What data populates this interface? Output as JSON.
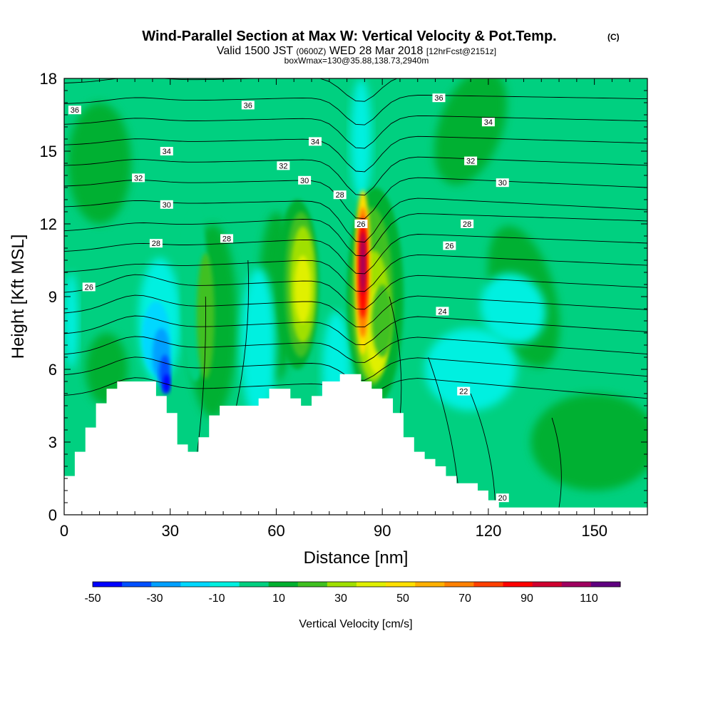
{
  "chart_data": {
    "type": "heatmap",
    "title": {
      "main": "Wind-Parallel Section at Max W: Vertical Velocity & Pot.Temp.",
      "copyright": "(C)",
      "valid_a": "Valid 1500 JST",
      "valid_b": "(0600Z)",
      "valid_c": "WED 28 Mar 2018",
      "fcst": "[12hrFcst@2151z]",
      "box": "boxWmax=130@35.88,138.73,2940m"
    },
    "xlabel": "Distance [nm]",
    "ylabel": "Height [Kft MSL]",
    "xlim": [
      0,
      165
    ],
    "ylim": [
      0,
      18
    ],
    "x_ticks": [
      "0",
      "30",
      "60",
      "90",
      "120",
      "150"
    ],
    "y_ticks": [
      "0",
      "3",
      "6",
      "9",
      "12",
      "15",
      "18"
    ],
    "colorbar": {
      "label": "Vertical Velocity [cm/s]",
      "tick_labels": [
        "-50",
        "-30",
        "-10",
        "10",
        "30",
        "50",
        "70",
        "90",
        "110"
      ],
      "levels": [
        -50,
        -40,
        -30,
        -20,
        -10,
        0,
        10,
        20,
        30,
        40,
        50,
        60,
        70,
        80,
        90,
        100,
        110,
        120
      ],
      "colors": [
        "#0000ff",
        "#0050ff",
        "#00a0ff",
        "#00d8ff",
        "#00f0e0",
        "#00d080",
        "#00b030",
        "#40c020",
        "#a0e000",
        "#e0f000",
        "#ffe000",
        "#ffb000",
        "#ff8000",
        "#ff4000",
        "#ff0000",
        "#d00030",
        "#a00060",
        "#600080"
      ]
    },
    "background_color": "#00d080",
    "terrain": [
      [
        0,
        1.6
      ],
      [
        3,
        1.6
      ],
      [
        3,
        2.6
      ],
      [
        6,
        2.6
      ],
      [
        6,
        3.6
      ],
      [
        9,
        3.6
      ],
      [
        9,
        4.6
      ],
      [
        12,
        4.6
      ],
      [
        12,
        5.2
      ],
      [
        15,
        5.2
      ],
      [
        15,
        5.5
      ],
      [
        26,
        5.5
      ],
      [
        26,
        4.9
      ],
      [
        29,
        4.9
      ],
      [
        29,
        4.2
      ],
      [
        32,
        4.2
      ],
      [
        32,
        2.9
      ],
      [
        35,
        2.9
      ],
      [
        35,
        2.6
      ],
      [
        38,
        2.6
      ],
      [
        38,
        3.2
      ],
      [
        41,
        3.2
      ],
      [
        41,
        4.1
      ],
      [
        44,
        4.1
      ],
      [
        44,
        4.5
      ],
      [
        55,
        4.5
      ],
      [
        55,
        4.8
      ],
      [
        58,
        4.8
      ],
      [
        58,
        5.2
      ],
      [
        64,
        5.2
      ],
      [
        64,
        4.8
      ],
      [
        67,
        4.8
      ],
      [
        67,
        4.5
      ],
      [
        70,
        4.5
      ],
      [
        70,
        4.9
      ],
      [
        73,
        4.9
      ],
      [
        73,
        5.5
      ],
      [
        78,
        5.5
      ],
      [
        78,
        5.8
      ],
      [
        84,
        5.8
      ],
      [
        84,
        5.5
      ],
      [
        87,
        5.5
      ],
      [
        87,
        5.2
      ],
      [
        90,
        5.2
      ],
      [
        90,
        4.8
      ],
      [
        93,
        4.8
      ],
      [
        93,
        4.2
      ],
      [
        96,
        4.2
      ],
      [
        96,
        3.2
      ],
      [
        99,
        3.2
      ],
      [
        99,
        2.6
      ],
      [
        102,
        2.6
      ],
      [
        102,
        2.3
      ],
      [
        105,
        2.3
      ],
      [
        105,
        2.0
      ],
      [
        108,
        2.0
      ],
      [
        108,
        1.6
      ],
      [
        111,
        1.6
      ],
      [
        111,
        1.3
      ],
      [
        114,
        1.3
      ],
      [
        114,
        1.3
      ],
      [
        117,
        1.3
      ],
      [
        117,
        1.0
      ],
      [
        120,
        1.0
      ],
      [
        120,
        0.6
      ],
      [
        123,
        0.6
      ],
      [
        123,
        0.3
      ],
      [
        165,
        0.3
      ]
    ],
    "contour_labels": [
      {
        "text": "36",
        "x": 3,
        "y": 16.7
      },
      {
        "text": "36",
        "x": 52,
        "y": 16.9
      },
      {
        "text": "36",
        "x": 106,
        "y": 17.2
      },
      {
        "text": "34",
        "x": 29,
        "y": 15.0
      },
      {
        "text": "34",
        "x": 71,
        "y": 15.4
      },
      {
        "text": "34",
        "x": 120,
        "y": 16.2
      },
      {
        "text": "32",
        "x": 21,
        "y": 13.9
      },
      {
        "text": "32",
        "x": 62,
        "y": 14.4
      },
      {
        "text": "32",
        "x": 115,
        "y": 14.6
      },
      {
        "text": "30",
        "x": 29,
        "y": 12.8
      },
      {
        "text": "30",
        "x": 68,
        "y": 13.8
      },
      {
        "text": "30",
        "x": 124,
        "y": 13.7
      },
      {
        "text": "28",
        "x": 26,
        "y": 11.2
      },
      {
        "text": "28",
        "x": 46,
        "y": 11.4
      },
      {
        "text": "28",
        "x": 78,
        "y": 13.2
      },
      {
        "text": "28",
        "x": 114,
        "y": 12.0
      },
      {
        "text": "26",
        "x": 7,
        "y": 9.4
      },
      {
        "text": "26",
        "x": 84,
        "y": 12.0
      },
      {
        "text": "26",
        "x": 109,
        "y": 11.1
      },
      {
        "text": "24",
        "x": 107,
        "y": 8.4
      },
      {
        "text": "22",
        "x": 113,
        "y": 5.1
      },
      {
        "text": "20",
        "x": 124,
        "y": 0.7
      }
    ]
  }
}
